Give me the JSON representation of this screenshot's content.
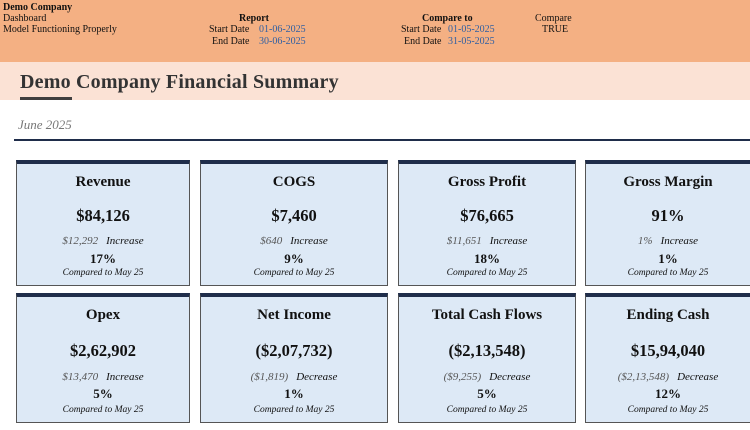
{
  "header": {
    "company": "Demo Company",
    "sheet": "Dashboard",
    "status": "Model Functioning Properly",
    "report": {
      "label": "Report",
      "start_label": "Start Date",
      "start": "01-06-2025",
      "end_label": "End Date",
      "end": "30-06-2025"
    },
    "compare_to": {
      "label": "Compare to",
      "start_label": "Start Date",
      "start": "01-05-2025",
      "end_label": "End Date",
      "end": "31-05-2025"
    },
    "compare": {
      "label": "Compare",
      "value": "TRUE"
    }
  },
  "page": {
    "title": "Demo Company Financial Summary",
    "period": "June 2025"
  },
  "cards": [
    {
      "title": "Revenue",
      "value": "$84,126",
      "change": "$12,292",
      "direction": "Increase",
      "pct": "17%",
      "compared": "Compared to  May 25"
    },
    {
      "title": "COGS",
      "value": "$7,460",
      "change": "$640",
      "direction": "Increase",
      "pct": "9%",
      "compared": "Compared to  May 25"
    },
    {
      "title": "Gross Profit",
      "value": "$76,665",
      "change": "$11,651",
      "direction": "Increase",
      "pct": "18%",
      "compared": "Compared to  May 25"
    },
    {
      "title": "Gross Margin",
      "value": "91%",
      "change": "1%",
      "direction": "Increase",
      "pct": "1%",
      "compared": "Compared to  May 25"
    },
    {
      "title": "Opex",
      "value": "$2,62,902",
      "change": "$13,470",
      "direction": "Increase",
      "pct": "5%",
      "compared": "Compared to  May 25"
    },
    {
      "title": "Net Income",
      "value": "($2,07,732)",
      "change": "($1,819)",
      "direction": "Decrease",
      "pct": "1%",
      "compared": "Compared to  May 25"
    },
    {
      "title": "Total Cash Flows",
      "value": "($2,13,548)",
      "change": "($9,255)",
      "direction": "Decrease",
      "pct": "5%",
      "compared": "Compared to  May 25"
    },
    {
      "title": "Ending Cash",
      "value": "$15,94,040",
      "change": "($2,13,548)",
      "direction": "Decrease",
      "pct": "12%",
      "compared": "Compared to  May 25"
    }
  ]
}
